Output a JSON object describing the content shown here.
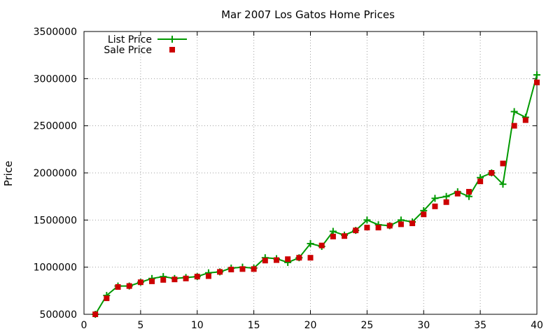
{
  "chart_data": {
    "type": "line",
    "title": "Mar 2007 Los Gatos Home Prices",
    "xlabel": "",
    "ylabel": "Price",
    "xlim": [
      0,
      40
    ],
    "ylim": [
      500000,
      3500000
    ],
    "x_ticks": [
      0,
      5,
      10,
      15,
      20,
      25,
      30,
      35,
      40
    ],
    "y_ticks": [
      500000,
      1000000,
      1500000,
      2000000,
      2500000,
      3000000,
      3500000
    ],
    "x_tick_labels": [
      "0",
      "5",
      "10",
      "15",
      "20",
      "25",
      "30",
      "35",
      "40"
    ],
    "y_tick_labels": [
      "500000",
      "1000000",
      "1500000",
      "2000000",
      "2500000",
      "3000000",
      "3500000"
    ],
    "grid": true,
    "legend_position": "top-left",
    "x": [
      1,
      2,
      3,
      4,
      5,
      6,
      7,
      8,
      9,
      10,
      11,
      12,
      13,
      14,
      15,
      16,
      17,
      18,
      19,
      20,
      21,
      22,
      23,
      24,
      25,
      26,
      27,
      28,
      29,
      30,
      31,
      32,
      33,
      34,
      35,
      36,
      37,
      38,
      39,
      40
    ],
    "series": [
      {
        "name": "List Price",
        "style": "line-plus",
        "color": "#009900",
        "values": [
          500000,
          700000,
          800000,
          800000,
          840000,
          880000,
          900000,
          880000,
          890000,
          900000,
          940000,
          950000,
          990000,
          1000000,
          990000,
          1100000,
          1090000,
          1050000,
          1100000,
          1250000,
          1220000,
          1380000,
          1340000,
          1390000,
          1500000,
          1450000,
          1440000,
          1500000,
          1480000,
          1600000,
          1730000,
          1750000,
          1800000,
          1750000,
          1950000,
          2000000,
          1880000,
          2650000,
          2590000,
          3040000
        ]
      },
      {
        "name": "Sale Price",
        "style": "square",
        "color": "#cc0000",
        "values": [
          500000,
          670000,
          790000,
          800000,
          840000,
          850000,
          865000,
          870000,
          880000,
          900000,
          905000,
          950000,
          975000,
          980000,
          980000,
          1070000,
          1075000,
          1085000,
          1100000,
          1100000,
          1230000,
          1325000,
          1330000,
          1390000,
          1420000,
          1420000,
          1440000,
          1455000,
          1465000,
          1560000,
          1645000,
          1690000,
          1780000,
          1800000,
          1910000,
          2000000,
          2100000,
          2500000,
          2560000,
          2960000
        ]
      }
    ]
  }
}
